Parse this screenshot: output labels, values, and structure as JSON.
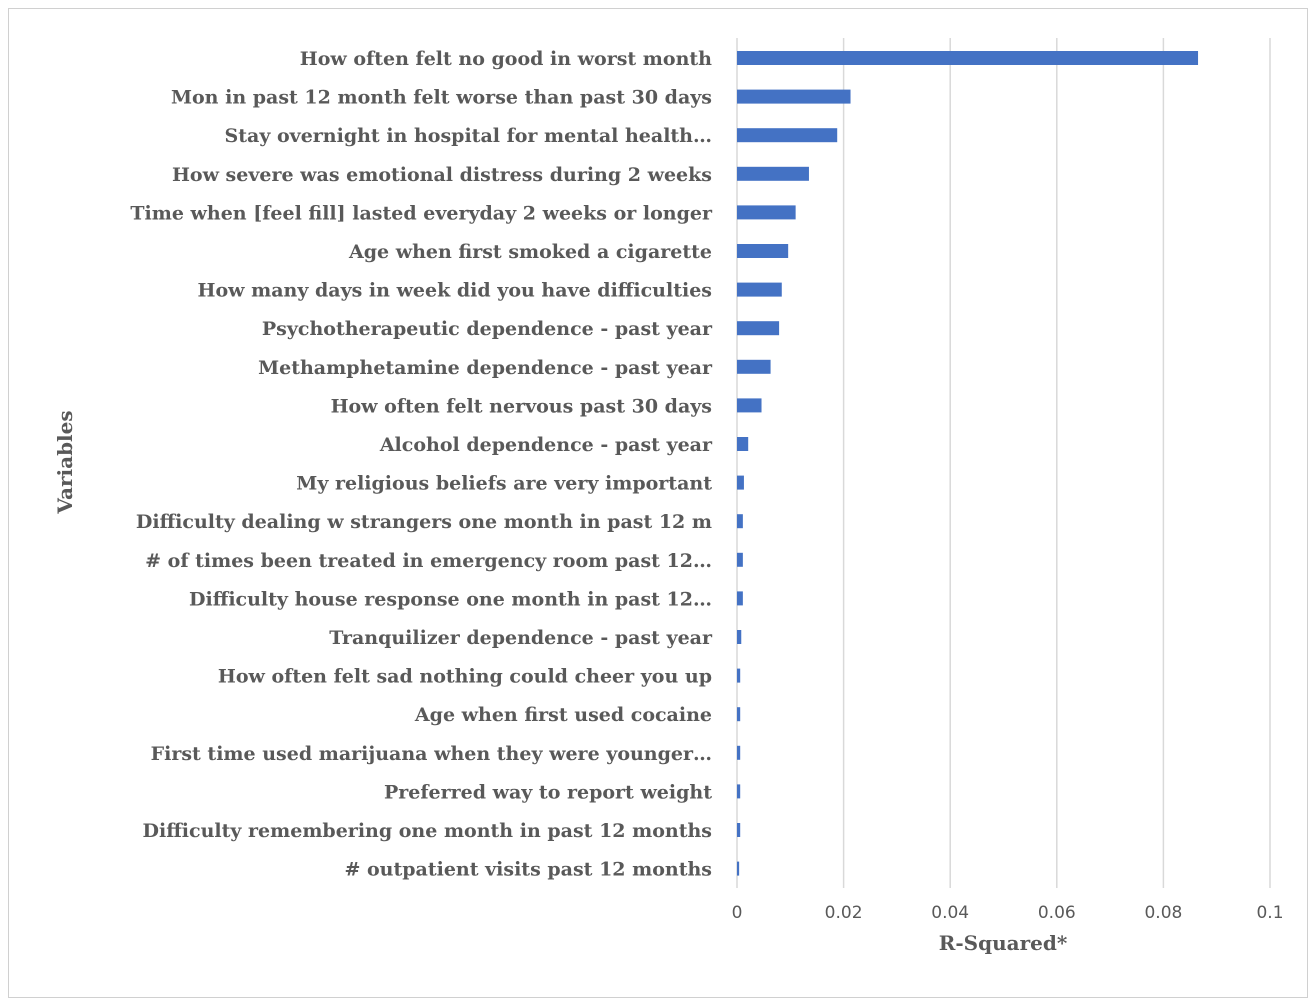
{
  "chart_data": {
    "type": "bar",
    "orientation": "horizontal",
    "xlabel": "R-Squared*",
    "ylabel": "Variables",
    "xlim": [
      0,
      0.1
    ],
    "x_ticks": [
      "0",
      "0.02",
      "0.04",
      "0.06",
      "0.08",
      "0.1"
    ],
    "grid": true,
    "color": "#4472c4",
    "categories": [
      "How often felt no good in worst month",
      "Mon in past 12 month felt worse than past 30 days",
      "Stay overnight in hospital for mental health…",
      "How severe was emotional distress during 2 weeks",
      "Time when [feel fill] lasted everyday 2 weeks or longer",
      "Age when first smoked a cigarette",
      "How many days in week did you have difficulties",
      "Psychotherapeutic dependence - past year",
      "Methamphetamine dependence - past year",
      "How often felt nervous past 30 days",
      "Alcohol dependence - past year",
      "My religious beliefs are very important",
      "Difficulty dealing w strangers one month in past 12 m",
      "# of times been treated in emergency room past 12…",
      "Difficulty house response one month in past 12…",
      "Tranquilizer dependence - past year",
      "How often felt sad nothing could cheer you up",
      "Age when first used cocaine",
      "First time used marijuana when they were younger…",
      "Preferred way to report weight",
      "Difficulty remembering one month in past 12 months",
      "# outpatient visits past 12 months"
    ],
    "values": [
      0.0865,
      0.0213,
      0.0188,
      0.0135,
      0.011,
      0.0096,
      0.0084,
      0.0079,
      0.0063,
      0.0046,
      0.0021,
      0.0013,
      0.0011,
      0.0011,
      0.0011,
      0.0008,
      0.0006,
      0.0006,
      0.0006,
      0.0006,
      0.0006,
      0.0004
    ]
  }
}
